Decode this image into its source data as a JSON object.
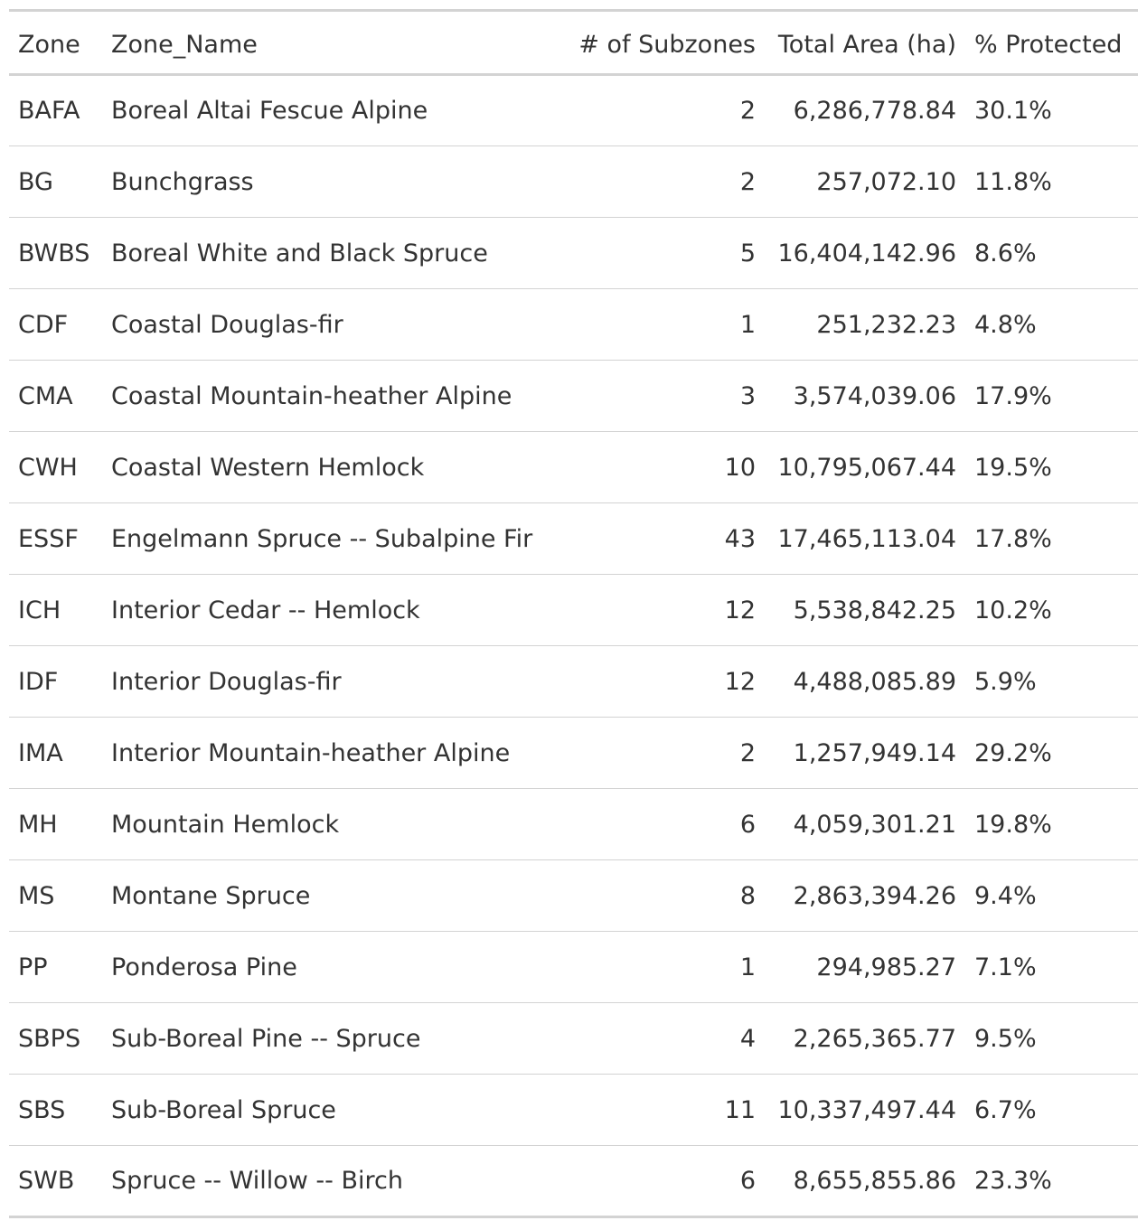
{
  "table": {
    "headers": {
      "zone": "Zone",
      "zone_name": "Zone_Name",
      "subzones": "# of Subzones",
      "total_area": "Total Area (ha)",
      "protected": "% Protected"
    },
    "rows": [
      {
        "zone": "BAFA",
        "zone_name": "Boreal Altai Fescue Alpine",
        "subzones": "2",
        "total_area": "6,286,778.84",
        "protected": "30.1%"
      },
      {
        "zone": "BG",
        "zone_name": "Bunchgrass",
        "subzones": "2",
        "total_area": "257,072.10",
        "protected": "11.8%"
      },
      {
        "zone": "BWBS",
        "zone_name": "Boreal White and Black Spruce",
        "subzones": "5",
        "total_area": "16,404,142.96",
        "protected": "8.6%"
      },
      {
        "zone": "CDF",
        "zone_name": "Coastal Douglas-fir",
        "subzones": "1",
        "total_area": "251,232.23",
        "protected": "4.8%"
      },
      {
        "zone": "CMA",
        "zone_name": "Coastal Mountain-heather Alpine",
        "subzones": "3",
        "total_area": "3,574,039.06",
        "protected": "17.9%"
      },
      {
        "zone": "CWH",
        "zone_name": "Coastal Western Hemlock",
        "subzones": "10",
        "total_area": "10,795,067.44",
        "protected": "19.5%"
      },
      {
        "zone": "ESSF",
        "zone_name": "Engelmann Spruce -- Subalpine Fir",
        "subzones": "43",
        "total_area": "17,465,113.04",
        "protected": "17.8%"
      },
      {
        "zone": "ICH",
        "zone_name": "Interior Cedar -- Hemlock",
        "subzones": "12",
        "total_area": "5,538,842.25",
        "protected": "10.2%"
      },
      {
        "zone": "IDF",
        "zone_name": "Interior Douglas-fir",
        "subzones": "12",
        "total_area": "4,488,085.89",
        "protected": "5.9%"
      },
      {
        "zone": "IMA",
        "zone_name": "Interior Mountain-heather Alpine",
        "subzones": "2",
        "total_area": "1,257,949.14",
        "protected": "29.2%"
      },
      {
        "zone": "MH",
        "zone_name": "Mountain Hemlock",
        "subzones": "6",
        "total_area": "4,059,301.21",
        "protected": "19.8%"
      },
      {
        "zone": "MS",
        "zone_name": "Montane Spruce",
        "subzones": "8",
        "total_area": "2,863,394.26",
        "protected": "9.4%"
      },
      {
        "zone": "PP",
        "zone_name": "Ponderosa Pine",
        "subzones": "1",
        "total_area": "294,985.27",
        "protected": "7.1%"
      },
      {
        "zone": "SBPS",
        "zone_name": "Sub-Boreal Pine -- Spruce",
        "subzones": "4",
        "total_area": "2,265,365.77",
        "protected": "9.5%"
      },
      {
        "zone": "SBS",
        "zone_name": "Sub-Boreal Spruce",
        "subzones": "11",
        "total_area": "10,337,497.44",
        "protected": "6.7%"
      },
      {
        "zone": "SWB",
        "zone_name": "Spruce -- Willow -- Birch",
        "subzones": "6",
        "total_area": "8,655,855.86",
        "protected": "23.3%"
      }
    ]
  }
}
